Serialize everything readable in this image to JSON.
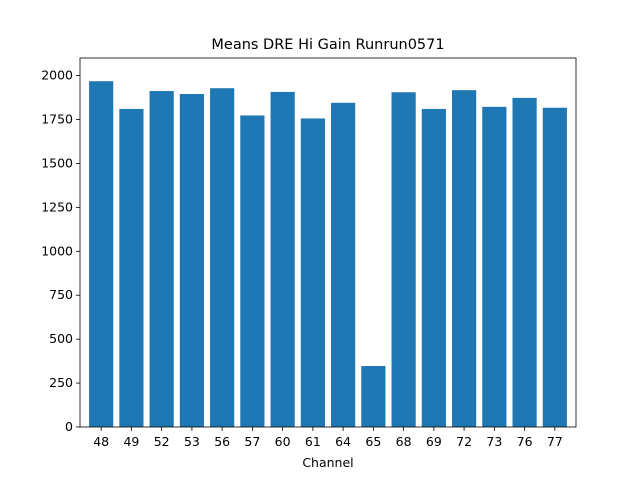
{
  "chart_data": {
    "type": "bar",
    "title": "Means DRE Hi Gain Runrun0571",
    "xlabel": "Channel",
    "ylabel": "",
    "categories": [
      "48",
      "49",
      "52",
      "53",
      "56",
      "57",
      "60",
      "61",
      "64",
      "65",
      "68",
      "69",
      "72",
      "73",
      "76",
      "77"
    ],
    "values": [
      1968,
      1810,
      1912,
      1895,
      1928,
      1773,
      1907,
      1756,
      1845,
      347,
      1905,
      1810,
      1917,
      1822,
      1873,
      1817
    ],
    "ylim": [
      0,
      2100
    ],
    "yticks": [
      0,
      250,
      500,
      750,
      1000,
      1250,
      1500,
      1750,
      2000
    ],
    "grid": false,
    "legend": "none",
    "bar_color": "#1f77b4"
  }
}
